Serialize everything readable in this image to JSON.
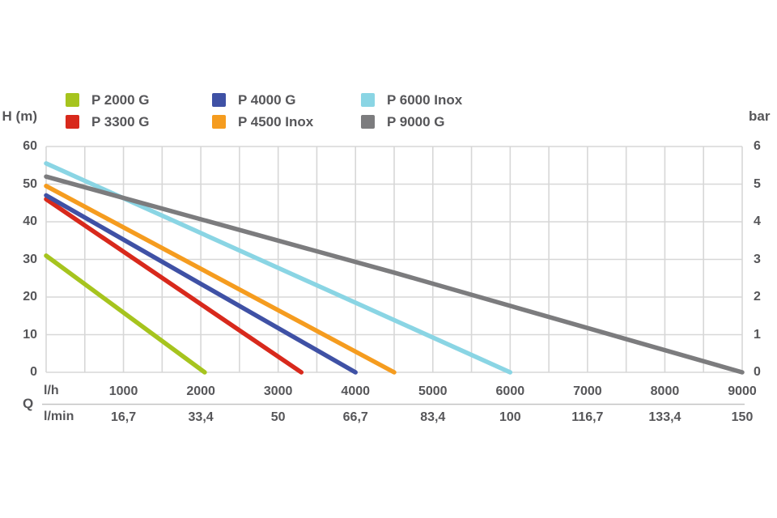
{
  "chart_data": {
    "type": "line",
    "title": "",
    "legend": {
      "position": "top",
      "layout": "3-columns-2-rows"
    },
    "left_axis": {
      "label": "H (m)",
      "min": 0,
      "max": 60,
      "tick_step": 10,
      "ticks": [
        "60",
        "50",
        "40",
        "30",
        "20",
        "10",
        "0"
      ]
    },
    "right_axis": {
      "label": "bar",
      "min": 0,
      "max": 6,
      "tick_step": 1,
      "ticks": [
        "6",
        "5",
        "4",
        "3",
        "2",
        "1",
        "0"
      ]
    },
    "x_axis": {
      "label": "Q",
      "min": 0,
      "max": 9000,
      "grid_step": 500,
      "tick_step": 1000,
      "rows": [
        {
          "unit": "l/h",
          "ticks": [
            "1000",
            "2000",
            "3000",
            "4000",
            "5000",
            "6000",
            "7000",
            "8000",
            "9000"
          ]
        },
        {
          "unit": "l/min",
          "ticks": [
            "16,7",
            "33,4",
            "50",
            "66,7",
            "83,4",
            "100",
            "116,7",
            "133,4",
            "150"
          ]
        }
      ]
    },
    "grid": true,
    "series": [
      {
        "name": "P 2000 G",
        "color": "#a6c41e",
        "points": [
          [
            0,
            31
          ],
          [
            2050,
            0
          ]
        ]
      },
      {
        "name": "P 3300 G",
        "color": "#d8291c",
        "points": [
          [
            0,
            46
          ],
          [
            3300,
            0
          ]
        ]
      },
      {
        "name": "P 4000 G",
        "color": "#3f51a5",
        "points": [
          [
            0,
            47
          ],
          [
            4000,
            0
          ]
        ]
      },
      {
        "name": "P 4500 Inox",
        "color": "#f59c1f",
        "points": [
          [
            0,
            49.5
          ],
          [
            4500,
            0
          ]
        ]
      },
      {
        "name": "P 6000 Inox",
        "color": "#8ad5e4",
        "points": [
          [
            0,
            55.5
          ],
          [
            6000,
            0
          ]
        ]
      },
      {
        "name": "P 9000 G",
        "color": "#7c7c7e",
        "points": [
          [
            0,
            52
          ],
          [
            4500,
            26.5
          ],
          [
            9000,
            0
          ]
        ]
      }
    ],
    "styles": {
      "background": "#ffffff",
      "grid_color": "#d7d7d7",
      "separator_color": "#c4c4c4",
      "text_color": "#565659",
      "line_width": 5.5
    }
  }
}
